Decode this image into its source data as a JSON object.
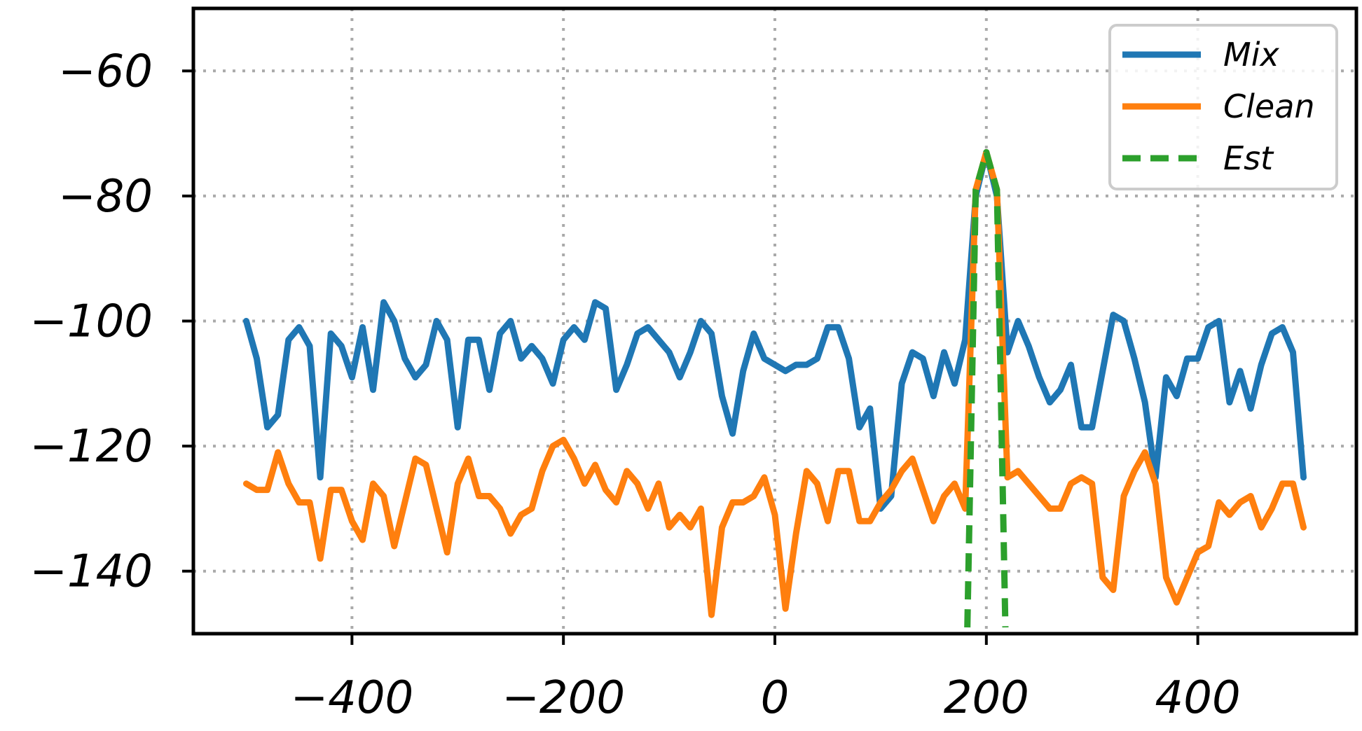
{
  "chart_data": {
    "type": "line",
    "title": "",
    "xlabel": "",
    "ylabel": "",
    "xlim": [
      -550,
      550
    ],
    "ylim": [
      -150,
      -50
    ],
    "xticks": [
      -400,
      -200,
      0,
      200,
      400
    ],
    "yticks": [
      -60,
      -80,
      -100,
      -120,
      -140
    ],
    "xtick_labels": [
      "−400",
      "−200",
      "0",
      "200",
      "400"
    ],
    "ytick_labels": [
      "−60",
      "−80",
      "−100",
      "−120",
      "−140"
    ],
    "grid": true,
    "legend_position": "top-right",
    "series": [
      {
        "name": "Mix",
        "color": "#1f77b4",
        "style": "solid",
        "x": [
          -500,
          -490,
          -480,
          -470,
          -460,
          -450,
          -440,
          -430,
          -420,
          -410,
          -400,
          -390,
          -380,
          -370,
          -360,
          -350,
          -340,
          -330,
          -320,
          -310,
          -300,
          -290,
          -280,
          -270,
          -260,
          -250,
          -240,
          -230,
          -220,
          -210,
          -200,
          -190,
          -180,
          -170,
          -160,
          -150,
          -140,
          -130,
          -120,
          -110,
          -100,
          -90,
          -80,
          -70,
          -60,
          -50,
          -40,
          -30,
          -20,
          -10,
          0,
          10,
          20,
          30,
          40,
          50,
          60,
          70,
          80,
          90,
          100,
          110,
          120,
          130,
          140,
          150,
          160,
          170,
          180,
          190,
          200,
          210,
          220,
          230,
          240,
          250,
          260,
          270,
          280,
          290,
          300,
          310,
          320,
          330,
          340,
          350,
          360,
          370,
          380,
          390,
          400,
          410,
          420,
          430,
          440,
          450,
          460,
          470,
          480,
          490,
          500
        ],
        "y": [
          -100,
          -106,
          -117,
          -115,
          -103,
          -101,
          -104,
          -125,
          -102,
          -104,
          -109,
          -101,
          -111,
          -97,
          -100,
          -106,
          -109,
          -107,
          -100,
          -103,
          -117,
          -103,
          -103,
          -111,
          -102,
          -100,
          -106,
          -104,
          -106,
          -110,
          -103,
          -101,
          -103,
          -97,
          -98,
          -111,
          -107,
          -102,
          -101,
          -103,
          -105,
          -109,
          -105,
          -100,
          -102,
          -112,
          -118,
          -108,
          -102,
          -106,
          -107,
          -108,
          -107,
          -107,
          -106,
          -101,
          -101,
          -106,
          -117,
          -114,
          -130,
          -128,
          -110,
          -105,
          -106,
          -112,
          -105,
          -110,
          -103,
          -80,
          -73,
          -80,
          -105,
          -100,
          -104,
          -109,
          -113,
          -111,
          -107,
          -117,
          -117,
          -108,
          -99,
          -100,
          -106,
          -113,
          -125,
          -109,
          -112,
          -106,
          -106,
          -101,
          -100,
          -113,
          -108,
          -114,
          -107,
          -102,
          -101,
          -105,
          -125
        ]
      },
      {
        "name": "Clean",
        "color": "#ff7f0e",
        "style": "solid",
        "x": [
          -500,
          -490,
          -480,
          -470,
          -460,
          -450,
          -440,
          -430,
          -420,
          -410,
          -400,
          -390,
          -380,
          -370,
          -360,
          -350,
          -340,
          -330,
          -320,
          -310,
          -300,
          -290,
          -280,
          -270,
          -260,
          -250,
          -240,
          -230,
          -220,
          -210,
          -200,
          -190,
          -180,
          -170,
          -160,
          -150,
          -140,
          -130,
          -120,
          -110,
          -100,
          -90,
          -80,
          -70,
          -60,
          -50,
          -40,
          -30,
          -20,
          -10,
          0,
          10,
          20,
          30,
          40,
          50,
          60,
          70,
          80,
          90,
          100,
          110,
          120,
          130,
          140,
          150,
          160,
          170,
          180,
          190,
          200,
          210,
          220,
          230,
          240,
          250,
          260,
          270,
          280,
          290,
          300,
          310,
          320,
          330,
          340,
          350,
          360,
          370,
          380,
          390,
          400,
          410,
          420,
          430,
          440,
          450,
          460,
          470,
          480,
          490,
          500
        ],
        "y": [
          -126,
          -127,
          -127,
          -121,
          -126,
          -129,
          -129,
          -138,
          -127,
          -127,
          -132,
          -135,
          -126,
          -128,
          -136,
          -129,
          -122,
          -123,
          -130,
          -137,
          -126,
          -122,
          -128,
          -128,
          -130,
          -134,
          -131,
          -130,
          -124,
          -120,
          -119,
          -122,
          -126,
          -123,
          -127,
          -129,
          -124,
          -126,
          -130,
          -126,
          -133,
          -131,
          -133,
          -130,
          -147,
          -133,
          -129,
          -129,
          -128,
          -125,
          -131,
          -146,
          -134,
          -124,
          -126,
          -132,
          -124,
          -124,
          -132,
          -132,
          -129,
          -127,
          -124,
          -122,
          -127,
          -132,
          -128,
          -126,
          -130,
          -79,
          -73,
          -79,
          -125,
          -124,
          -126,
          -128,
          -130,
          -130,
          -126,
          -125,
          -126,
          -141,
          -143,
          -128,
          -124,
          -121,
          -126,
          -141,
          -145,
          -141,
          -137,
          -136,
          -129,
          -131,
          -129,
          -128,
          -133,
          -130,
          -126,
          -126,
          -133
        ]
      },
      {
        "name": "Est",
        "color": "#2ca02c",
        "style": "dashed",
        "x": [
          182,
          190,
          200,
          210,
          218
        ],
        "y": [
          -149,
          -79,
          -73,
          -79,
          -149
        ]
      }
    ]
  }
}
